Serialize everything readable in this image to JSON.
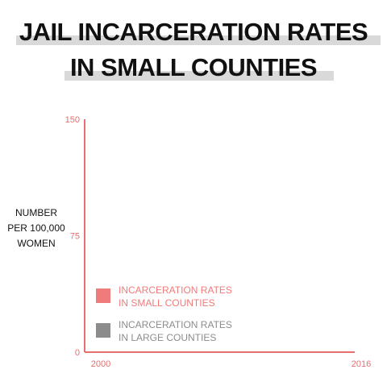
{
  "title": {
    "line1": "JAIL INCARCERATION RATES",
    "line2": "IN SMALL COUNTIES"
  },
  "colors": {
    "accent": "#e86f6f",
    "small_counties": "#ef7b7b",
    "large_counties": "#8c8c8c",
    "title_highlight": "#d9d9d9"
  },
  "chart_data": {
    "type": "line",
    "title": "JAIL INCARCERATION RATES IN SMALL COUNTIES",
    "ylabel": "NUMBER PER 100,000 WOMEN",
    "xlabel": "",
    "x_ticks": [
      "2000",
      "2016"
    ],
    "y_ticks": [
      "0",
      "75",
      "150"
    ],
    "xlim": [
      2000,
      2016
    ],
    "ylim": [
      0,
      150
    ],
    "grid": false,
    "legend_position": "bottom-left",
    "series": [
      {
        "name": "INCARCERATION RATES\nIN SMALL COUNTIES",
        "color": "#ef7b7b",
        "values": []
      },
      {
        "name": "INCARCERATION RATES\nIN LARGE COUNTIES",
        "color": "#8c8c8c",
        "values": []
      }
    ]
  }
}
